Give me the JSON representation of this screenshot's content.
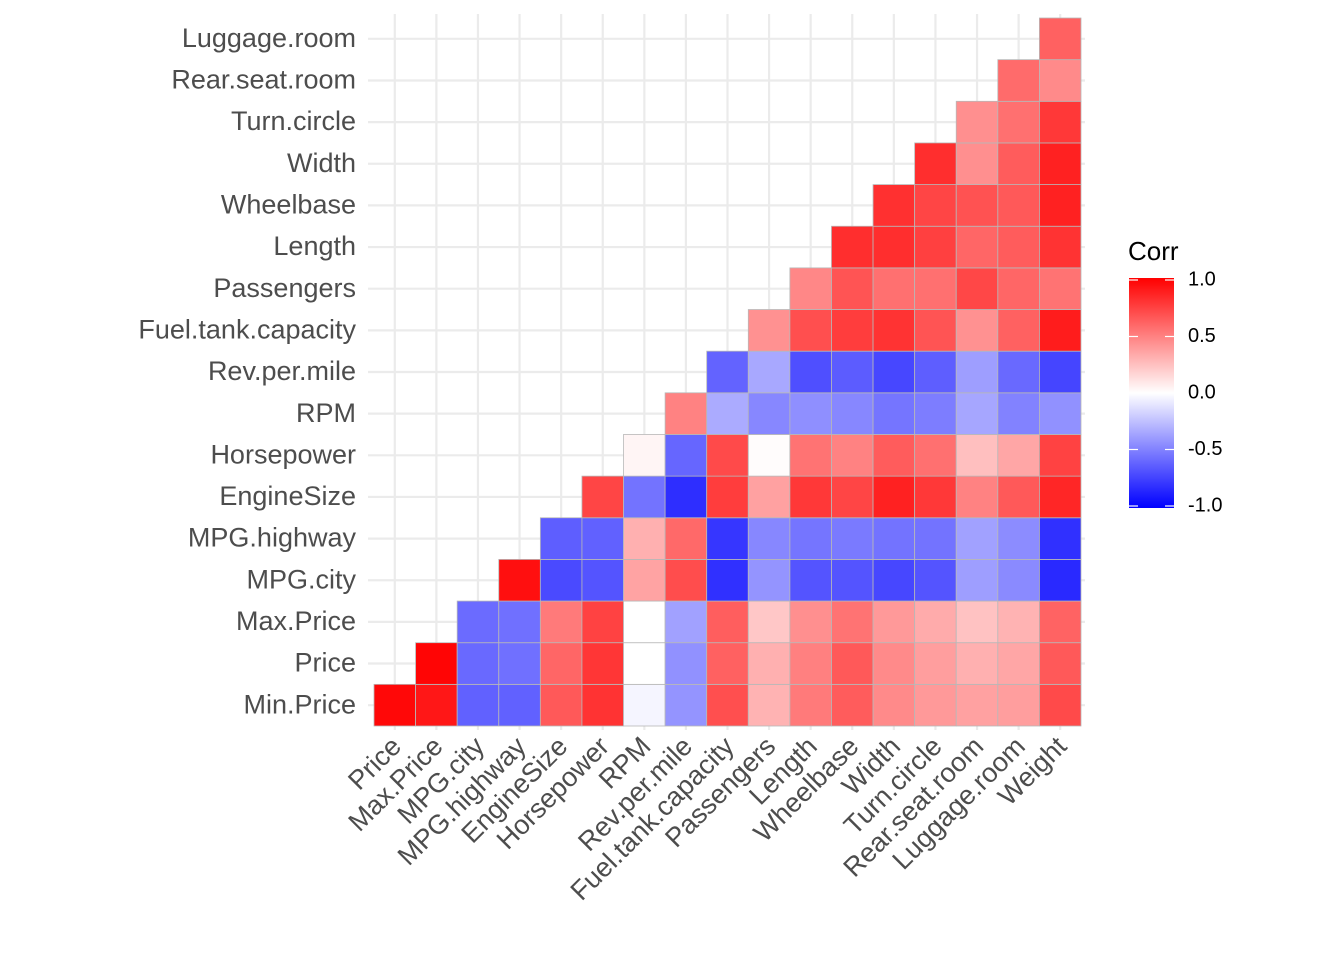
{
  "chart_data": {
    "type": "heatmap",
    "title": "",
    "xlabel": "",
    "ylabel": "",
    "x_categories": [
      "Price",
      "Max.Price",
      "MPG.city",
      "MPG.highway",
      "EngineSize",
      "Horsepower",
      "RPM",
      "Rev.per.mile",
      "Fuel.tank.capacity",
      "Passengers",
      "Length",
      "Wheelbase",
      "Width",
      "Turn.circle",
      "Rear.seat.room",
      "Luggage.room",
      "Weight"
    ],
    "y_categories": [
      "Min.Price",
      "Price",
      "Max.Price",
      "MPG.city",
      "MPG.highway",
      "EngineSize",
      "Horsepower",
      "RPM",
      "Rev.per.mile",
      "Fuel.tank.capacity",
      "Passengers",
      "Length",
      "Wheelbase",
      "Width",
      "Turn.circle",
      "Rear.seat.room",
      "Luggage.room"
    ],
    "layout_note": "lower-triangular: cell shown where x index >= y index",
    "values": [
      [
        0.97,
        0.91,
        -0.62,
        -0.62,
        0.65,
        0.8,
        -0.04,
        -0.42,
        0.69,
        0.3,
        0.52,
        0.64,
        0.46,
        0.4,
        0.37,
        0.38,
        0.71
      ],
      [
        null,
        0.98,
        -0.59,
        -0.56,
        0.6,
        0.79,
        -0.0,
        -0.43,
        0.62,
        0.31,
        0.5,
        0.65,
        0.46,
        0.38,
        0.31,
        0.35,
        0.65
      ],
      [
        null,
        null,
        -0.58,
        -0.56,
        0.52,
        0.74,
        0.0,
        -0.37,
        0.63,
        0.22,
        0.44,
        0.55,
        0.4,
        0.33,
        0.24,
        0.3,
        0.61
      ],
      [
        null,
        null,
        null,
        0.94,
        -0.71,
        -0.67,
        0.36,
        0.7,
        -0.81,
        -0.42,
        -0.67,
        -0.67,
        -0.72,
        -0.67,
        -0.38,
        -0.46,
        -0.84
      ],
      [
        null,
        null,
        null,
        null,
        -0.63,
        -0.62,
        0.31,
        0.59,
        -0.79,
        -0.47,
        -0.54,
        -0.52,
        -0.55,
        -0.55,
        -0.37,
        -0.45,
        -0.81
      ],
      [
        null,
        null,
        null,
        null,
        null,
        0.73,
        -0.55,
        -0.82,
        0.76,
        0.37,
        0.78,
        0.73,
        0.87,
        0.78,
        0.49,
        0.65,
        0.85
      ],
      [
        null,
        null,
        null,
        null,
        null,
        null,
        0.04,
        -0.6,
        0.71,
        0.01,
        0.55,
        0.49,
        0.64,
        0.56,
        0.25,
        0.35,
        0.74
      ],
      [
        null,
        null,
        null,
        null,
        null,
        null,
        null,
        0.49,
        -0.33,
        -0.47,
        -0.44,
        -0.47,
        -0.54,
        -0.51,
        -0.35,
        -0.49,
        -0.43
      ],
      [
        null,
        null,
        null,
        null,
        null,
        null,
        null,
        null,
        -0.61,
        -0.34,
        -0.69,
        -0.64,
        -0.72,
        -0.63,
        -0.38,
        -0.59,
        -0.73
      ],
      [
        null,
        null,
        null,
        null,
        null,
        null,
        null,
        null,
        null,
        0.43,
        0.69,
        0.76,
        0.8,
        0.67,
        0.43,
        0.62,
        0.89
      ],
      [
        null,
        null,
        null,
        null,
        null,
        null,
        null,
        null,
        null,
        null,
        0.47,
        0.67,
        0.56,
        0.56,
        0.72,
        0.6,
        0.55
      ],
      [
        null,
        null,
        null,
        null,
        null,
        null,
        null,
        null,
        null,
        null,
        null,
        0.82,
        0.82,
        0.75,
        0.6,
        0.64,
        0.8
      ],
      [
        null,
        null,
        null,
        null,
        null,
        null,
        null,
        null,
        null,
        null,
        null,
        null,
        0.81,
        0.73,
        0.68,
        0.65,
        0.87
      ],
      [
        null,
        null,
        null,
        null,
        null,
        null,
        null,
        null,
        null,
        null,
        null,
        null,
        null,
        0.82,
        0.44,
        0.64,
        0.87
      ],
      [
        null,
        null,
        null,
        null,
        null,
        null,
        null,
        null,
        null,
        null,
        null,
        null,
        null,
        null,
        0.44,
        0.56,
        0.78
      ],
      [
        null,
        null,
        null,
        null,
        null,
        null,
        null,
        null,
        null,
        null,
        null,
        null,
        null,
        null,
        null,
        0.58,
        0.46
      ],
      [
        null,
        null,
        null,
        null,
        null,
        null,
        null,
        null,
        null,
        null,
        null,
        null,
        null,
        null,
        null,
        null,
        0.62
      ]
    ],
    "color_scale": {
      "low": "#0000FF",
      "mid": "#FFFFFF",
      "high": "#FF0000",
      "limits": [
        -1,
        1
      ],
      "midpoint": 0
    },
    "grid": true,
    "legend": {
      "title": "Corr",
      "position": "right",
      "ticks": [
        "1.0",
        "0.5",
        "0.0",
        "-0.5",
        "-1.0"
      ],
      "tick_values": [
        1.0,
        0.5,
        0.0,
        -0.5,
        -1.0
      ]
    }
  }
}
